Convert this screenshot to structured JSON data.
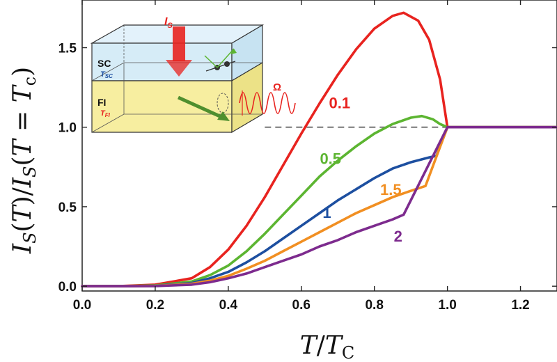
{
  "chart_data": {
    "type": "line",
    "xlabel": "T/T_C",
    "ylabel": "I_S(T)/I_S(T=T_c)",
    "xlim": [
      0,
      1.3
    ],
    "ylim": [
      -0.03,
      1.8
    ],
    "x_ticks": [
      "0.0",
      "0.2",
      "0.4",
      "0.6",
      "0.8",
      "1.0",
      "1.2"
    ],
    "y_ticks": [
      "0.0",
      "0.5",
      "1.0",
      "1.5"
    ],
    "reference_line": {
      "y": 1.0,
      "x_from": 0.5,
      "x_to": 1.3,
      "style": "dashed"
    },
    "series": [
      {
        "name": "0.1",
        "color": "#e8231f",
        "x": [
          0,
          0.1,
          0.2,
          0.3,
          0.35,
          0.4,
          0.45,
          0.5,
          0.55,
          0.6,
          0.65,
          0.7,
          0.75,
          0.8,
          0.85,
          0.88,
          0.92,
          0.95,
          0.98,
          1.0,
          1.1,
          1.2,
          1.3
        ],
        "y": [
          0,
          0,
          0.01,
          0.05,
          0.12,
          0.23,
          0.38,
          0.56,
          0.76,
          0.96,
          1.15,
          1.33,
          1.49,
          1.62,
          1.7,
          1.72,
          1.67,
          1.55,
          1.3,
          1.0,
          1.0,
          1.0,
          1.0
        ]
      },
      {
        "name": "0.5",
        "color": "#5cb531",
        "x": [
          0,
          0.1,
          0.2,
          0.3,
          0.35,
          0.4,
          0.45,
          0.5,
          0.55,
          0.6,
          0.65,
          0.7,
          0.75,
          0.8,
          0.85,
          0.9,
          0.93,
          0.96,
          0.98,
          1.0,
          1.1,
          1.3
        ],
        "y": [
          0,
          0,
          0.005,
          0.03,
          0.07,
          0.13,
          0.22,
          0.33,
          0.45,
          0.57,
          0.69,
          0.79,
          0.88,
          0.96,
          1.02,
          1.06,
          1.07,
          1.05,
          1.02,
          1.0,
          1.0,
          1.0
        ]
      },
      {
        "name": "1",
        "color": "#1d4fa0",
        "x": [
          0,
          0.1,
          0.2,
          0.3,
          0.35,
          0.4,
          0.45,
          0.5,
          0.55,
          0.6,
          0.65,
          0.7,
          0.75,
          0.8,
          0.85,
          0.9,
          0.95,
          0.97,
          1.0,
          1.1,
          1.3
        ],
        "y": [
          0,
          0,
          0.003,
          0.02,
          0.05,
          0.09,
          0.15,
          0.22,
          0.3,
          0.38,
          0.46,
          0.54,
          0.61,
          0.68,
          0.74,
          0.78,
          0.81,
          0.82,
          1.0,
          1.0,
          1.0
        ]
      },
      {
        "name": "1.5",
        "color": "#f18f22",
        "x": [
          0,
          0.1,
          0.2,
          0.3,
          0.35,
          0.4,
          0.45,
          0.5,
          0.55,
          0.6,
          0.65,
          0.7,
          0.75,
          0.8,
          0.85,
          0.9,
          0.94,
          1.0,
          1.1,
          1.3
        ],
        "y": [
          0,
          0,
          0.002,
          0.015,
          0.035,
          0.065,
          0.11,
          0.16,
          0.22,
          0.28,
          0.34,
          0.4,
          0.46,
          0.51,
          0.56,
          0.6,
          0.63,
          1.0,
          1.0,
          1.0
        ]
      },
      {
        "name": "2",
        "color": "#7d2b8e",
        "x": [
          0,
          0.1,
          0.2,
          0.3,
          0.35,
          0.4,
          0.45,
          0.5,
          0.55,
          0.6,
          0.65,
          0.7,
          0.75,
          0.8,
          0.85,
          0.88,
          1.0,
          1.1,
          1.3
        ],
        "y": [
          0,
          0,
          0.001,
          0.01,
          0.025,
          0.05,
          0.08,
          0.12,
          0.16,
          0.2,
          0.25,
          0.29,
          0.34,
          0.38,
          0.42,
          0.45,
          1.0,
          1.0,
          1.0
        ]
      }
    ],
    "curve_label_positions": [
      {
        "text": "0.1",
        "x": 0.705,
        "y": 1.12
      },
      {
        "text": "0.5",
        "x": 0.68,
        "y": 0.77
      },
      {
        "text": "1",
        "x": 0.67,
        "y": 0.43
      },
      {
        "text": "1.5",
        "x": 0.845,
        "y": 0.575
      },
      {
        "text": "2",
        "x": 0.865,
        "y": 0.28
      }
    ],
    "grid": false
  },
  "inset": {
    "is_label": "I",
    "is_sub": "S",
    "sc_label": "SC",
    "tsc_label": "T",
    "tsc_sub": "SC",
    "fi_label": "FI",
    "tfi_label": "T",
    "tfi_sub": "FI",
    "omega_label": "Ω",
    "colors": {
      "sc": "#d6ecf7",
      "fi": "#f7eea0",
      "arrow": "#e8231f",
      "wave": "#e8231f",
      "magnon": "#5cb531"
    }
  }
}
